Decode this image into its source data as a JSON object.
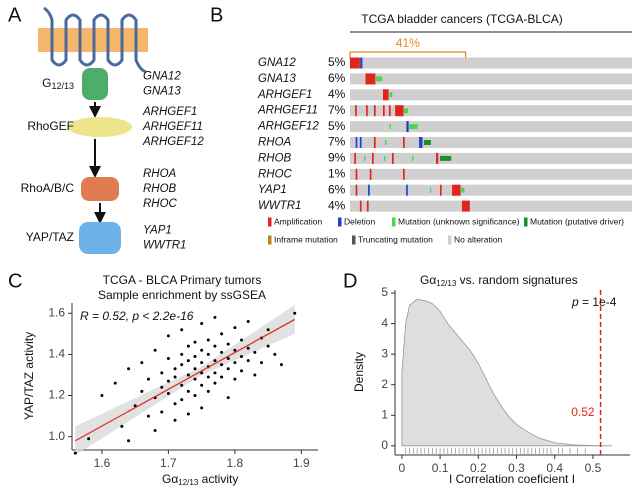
{
  "panel_labels": [
    "A",
    "B",
    "C",
    "D"
  ],
  "pathway": {
    "nodes": [
      {
        "label": "G",
        "subscript": "12/13",
        "color": "#4cae6a",
        "genes": [
          "GNA12",
          "GNA13"
        ]
      },
      {
        "label": "RhoGEF",
        "color": "#ece58c",
        "genes": [
          "ARHGEF1",
          "ARHGEF11",
          "ARHGEF12"
        ]
      },
      {
        "label": "RhoA/B/C",
        "color": "#e07c52",
        "genes": [
          "RHOA",
          "RHOB",
          "RHOC"
        ]
      },
      {
        "label": "YAP/TAZ",
        "color": "#6cb2e8",
        "genes": [
          "YAP1",
          "WWTR1"
        ]
      }
    ]
  },
  "oncoprint": {
    "title": "TCGA bladder cancers (TCGA-BLCA)",
    "altered": 41,
    "altered_label": "41%",
    "xlim": [
      0,
      100
    ],
    "legend": [
      {
        "label": "Amplification",
        "color": "#e3241b"
      },
      {
        "label": "Deletion",
        "color": "#1f3fd0"
      },
      {
        "label": "Mutation (unknown significance)",
        "color": "#4cd64c"
      },
      {
        "label": "Mutation (putative driver)",
        "color": "#1e8f2e"
      },
      {
        "label": "Inframe mutation",
        "color": "#b8860b"
      },
      {
        "label": "Truncating mutation",
        "color": "#555555"
      },
      {
        "label": "No alteration",
        "color": "#cfcfcf"
      }
    ],
    "rows": [
      {
        "gene": "GNA12",
        "percent": 5,
        "percent_label": "5%",
        "alterations": [
          {
            "type": "Amplification",
            "start": 0,
            "width": 3.5
          },
          {
            "type": "Deletion",
            "start": 3.6,
            "width": 0.8
          }
        ]
      },
      {
        "gene": "GNA13",
        "percent": 6,
        "percent_label": "6%",
        "alterations": [
          {
            "type": "Amplification",
            "start": 5.5,
            "width": 3.5
          },
          {
            "type": "Mutation (unknown significance)",
            "start": 9.2,
            "width": 2.2
          }
        ]
      },
      {
        "gene": "ARHGEF1",
        "percent": 4,
        "percent_label": "4%",
        "alterations": [
          {
            "type": "Amplification",
            "start": 11.7,
            "width": 2
          },
          {
            "type": "Mutation (unknown significance)",
            "start": 14,
            "width": 1
          }
        ]
      },
      {
        "gene": "ARHGEF11",
        "percent": 7,
        "percent_label": "7%",
        "alterations": [
          {
            "type": "Amplification",
            "start": 1.8,
            "width": 0.6
          },
          {
            "type": "Amplification",
            "start": 5.7,
            "width": 0.6
          },
          {
            "type": "Amplification",
            "start": 8.5,
            "width": 0.6
          },
          {
            "type": "Amplification",
            "start": 11.7,
            "width": 0.6
          },
          {
            "type": "Amplification",
            "start": 13.8,
            "width": 0.6
          },
          {
            "type": "Amplification",
            "start": 16,
            "width": 3
          },
          {
            "type": "Mutation (unknown significance)",
            "start": 19.1,
            "width": 1.5
          }
        ]
      },
      {
        "gene": "ARHGEF12",
        "percent": 5,
        "percent_label": "5%",
        "alterations": [
          {
            "type": "Mutation (unknown significance)",
            "start": 14,
            "width": 0.5
          },
          {
            "type": "Deletion",
            "start": 20,
            "width": 0.8
          },
          {
            "type": "Mutation (unknown significance)",
            "start": 21,
            "width": 3
          }
        ]
      },
      {
        "gene": "RHOA",
        "percent": 7,
        "percent_label": "7%",
        "alterations": [
          {
            "type": "Deletion",
            "start": 2,
            "width": 0.6
          },
          {
            "type": "Deletion",
            "start": 3.5,
            "width": 0.6
          },
          {
            "type": "Amplification",
            "start": 8.5,
            "width": 0.6
          },
          {
            "type": "Mutation (unknown significance)",
            "start": 12.4,
            "width": 0.5
          },
          {
            "type": "Amplification",
            "start": 18.8,
            "width": 0.6
          },
          {
            "type": "Deletion",
            "start": 24.5,
            "width": 1.2
          },
          {
            "type": "Mutation (putative driver)",
            "start": 26.2,
            "width": 2.5
          }
        ]
      },
      {
        "gene": "RHOB",
        "percent": 9,
        "percent_label": "9%",
        "alterations": [
          {
            "type": "Amplification",
            "start": 1.5,
            "width": 0.6
          },
          {
            "type": "Mutation (unknown significance)",
            "start": 5,
            "width": 0.5
          },
          {
            "type": "Amplification",
            "start": 7.8,
            "width": 0.6
          },
          {
            "type": "Mutation (unknown significance)",
            "start": 12,
            "width": 0.5
          },
          {
            "type": "Amplification",
            "start": 14.9,
            "width": 0.6
          },
          {
            "type": "Mutation (unknown significance)",
            "start": 22,
            "width": 0.5
          },
          {
            "type": "Amplification",
            "start": 30.5,
            "width": 0.8
          },
          {
            "type": "Mutation (putative driver)",
            "start": 31.9,
            "width": 4
          }
        ]
      },
      {
        "gene": "RHOC",
        "percent": 1,
        "percent_label": "1%",
        "alterations": [
          {
            "type": "Amplification",
            "start": 2,
            "width": 0.6
          },
          {
            "type": "Amplification",
            "start": 7,
            "width": 0.6
          },
          {
            "type": "Amplification",
            "start": 18.8,
            "width": 0.6
          }
        ]
      },
      {
        "gene": "YAP1",
        "percent": 6,
        "percent_label": "6%",
        "alterations": [
          {
            "type": "Amplification",
            "start": 2,
            "width": 0.6
          },
          {
            "type": "Deletion",
            "start": 6.4,
            "width": 0.6
          },
          {
            "type": "Deletion",
            "start": 19.9,
            "width": 0.6
          },
          {
            "type": "Mutation (unknown significance)",
            "start": 28.4,
            "width": 0.4
          },
          {
            "type": "Amplification",
            "start": 31.9,
            "width": 0.6
          },
          {
            "type": "Amplification",
            "start": 36.2,
            "width": 3
          },
          {
            "type": "Mutation (unknown significance)",
            "start": 39.4,
            "width": 1.2
          }
        ]
      },
      {
        "gene": "WWTR1",
        "percent": 4,
        "percent_label": "4%",
        "alterations": [
          {
            "type": "Amplification",
            "start": 3.5,
            "width": 0.6
          },
          {
            "type": "Amplification",
            "start": 6,
            "width": 0.6
          },
          {
            "type": "Amplification",
            "start": 39.7,
            "width": 2.8
          }
        ]
      }
    ]
  },
  "chart_data": [
    {
      "type": "scatter",
      "title": "TCGA - BLCA Primary tumors",
      "subtitle": "Sample enrichment by ssGSEA",
      "annotation": "R = 0.52, p < 2.2e-16",
      "xlabel": {
        "text": "Gα",
        "subscript": "12/13",
        "suffix": " activity"
      },
      "ylabel": "YAP/TAZ activity",
      "xlim": [
        1.555,
        1.925
      ],
      "ylim": [
        0.935,
        1.65
      ],
      "xticks": [
        1.6,
        1.7,
        1.8,
        1.9
      ],
      "yticks": [
        {
          "value": 1,
          "label": "1.0"
        },
        1.2,
        1.4,
        1.6
      ],
      "color": "#000000",
      "x": [
        1.56,
        1.58,
        1.6,
        1.62,
        1.63,
        1.64,
        1.64,
        1.65,
        1.66,
        1.66,
        1.67,
        1.67,
        1.68,
        1.68,
        1.68,
        1.69,
        1.69,
        1.69,
        1.7,
        1.7,
        1.7,
        1.7,
        1.71,
        1.71,
        1.71,
        1.71,
        1.72,
        1.72,
        1.72,
        1.72,
        1.72,
        1.73,
        1.73,
        1.73,
        1.73,
        1.73,
        1.74,
        1.74,
        1.74,
        1.74,
        1.74,
        1.75,
        1.75,
        1.75,
        1.75,
        1.75,
        1.75,
        1.76,
        1.76,
        1.76,
        1.76,
        1.76,
        1.77,
        1.77,
        1.77,
        1.77,
        1.77,
        1.78,
        1.78,
        1.78,
        1.78,
        1.79,
        1.79,
        1.79,
        1.79,
        1.8,
        1.8,
        1.8,
        1.8,
        1.81,
        1.81,
        1.81,
        1.82,
        1.82,
        1.82,
        1.83,
        1.83,
        1.84,
        1.84,
        1.85,
        1.85,
        1.86,
        1.87,
        1.89
      ],
      "values": [
        0.92,
        0.99,
        1.2,
        1.26,
        1.05,
        1.33,
        0.98,
        1.15,
        1.22,
        1.36,
        1.1,
        1.28,
        1.19,
        1.42,
        1.03,
        1.31,
        1.24,
        1.12,
        1.38,
        1.21,
        1.27,
        1.49,
        1.16,
        1.33,
        1.29,
        1.08,
        1.25,
        1.4,
        1.35,
        1.18,
        1.52,
        1.3,
        1.22,
        1.44,
        1.37,
        1.11,
        1.28,
        1.33,
        1.46,
        1.2,
        1.39,
        1.31,
        1.25,
        1.42,
        1.36,
        1.55,
        1.14,
        1.34,
        1.29,
        1.4,
        1.47,
        1.22,
        1.37,
        1.31,
        1.44,
        1.26,
        1.58,
        1.35,
        1.41,
        1.29,
        1.5,
        1.38,
        1.33,
        1.45,
        1.19,
        1.42,
        1.36,
        1.53,
        1.28,
        1.39,
        1.47,
        1.32,
        1.43,
        1.37,
        1.56,
        1.41,
        1.3,
        1.48,
        1.36,
        1.44,
        1.52,
        1.4,
        1.35,
        1.6
      ],
      "fit": {
        "x": [
          1.56,
          1.89
        ],
        "y": [
          0.98,
          1.57
        ],
        "color": "#e3241b"
      },
      "band": {
        "x": [
          1.56,
          1.75,
          1.89
        ],
        "lower": [
          0.91,
          1.3,
          1.5
        ],
        "upper": [
          1.05,
          1.34,
          1.64
        ],
        "color": "#d9d9d9"
      }
    },
    {
      "type": "density",
      "title": {
        "text": "Gα",
        "subscript": "12/13",
        "suffix": " vs. random signatures"
      },
      "annotation": {
        "symbol": "p",
        "text": " = 1e-4"
      },
      "xlabel": "I Correlation coeficient I",
      "ylabel": "Density",
      "xlim": [
        -0.018,
        0.597
      ],
      "ylim": [
        -0.3,
        5.1
      ],
      "xticks": [
        0,
        0.1,
        0.2,
        0.3,
        0.4,
        0.5
      ],
      "yticks": [
        0,
        1,
        2,
        3,
        4,
        5
      ],
      "color": "#dedede",
      "x": [
        0,
        0.01,
        0.02,
        0.04,
        0.06,
        0.08,
        0.1,
        0.12,
        0.14,
        0.16,
        0.18,
        0.2,
        0.22,
        0.24,
        0.26,
        0.28,
        0.3,
        0.33,
        0.36,
        0.4,
        0.45,
        0.5,
        0.55
      ],
      "values": [
        2.4,
        4.0,
        4.6,
        4.8,
        4.75,
        4.65,
        4.4,
        4.0,
        3.7,
        3.4,
        3.1,
        2.7,
        2.2,
        1.7,
        1.3,
        0.95,
        0.7,
        0.45,
        0.25,
        0.1,
        0.03,
        0.01,
        0
      ],
      "rug": [
        0.01,
        0.02,
        0.03,
        0.04,
        0.05,
        0.06,
        0.07,
        0.08,
        0.09,
        0.1,
        0.11,
        0.12,
        0.13,
        0.14,
        0.15,
        0.16,
        0.17,
        0.18,
        0.19,
        0.2,
        0.21,
        0.22,
        0.23,
        0.24,
        0.25,
        0.26,
        0.27,
        0.28,
        0.29,
        0.3,
        0.31,
        0.32,
        0.33,
        0.34,
        0.35,
        0.36,
        0.37,
        0.38,
        0.39,
        0.41,
        0.42,
        0.44,
        0.46,
        0.48
      ],
      "threshold": 0.52,
      "threshold_color": "#e3241b"
    }
  ]
}
